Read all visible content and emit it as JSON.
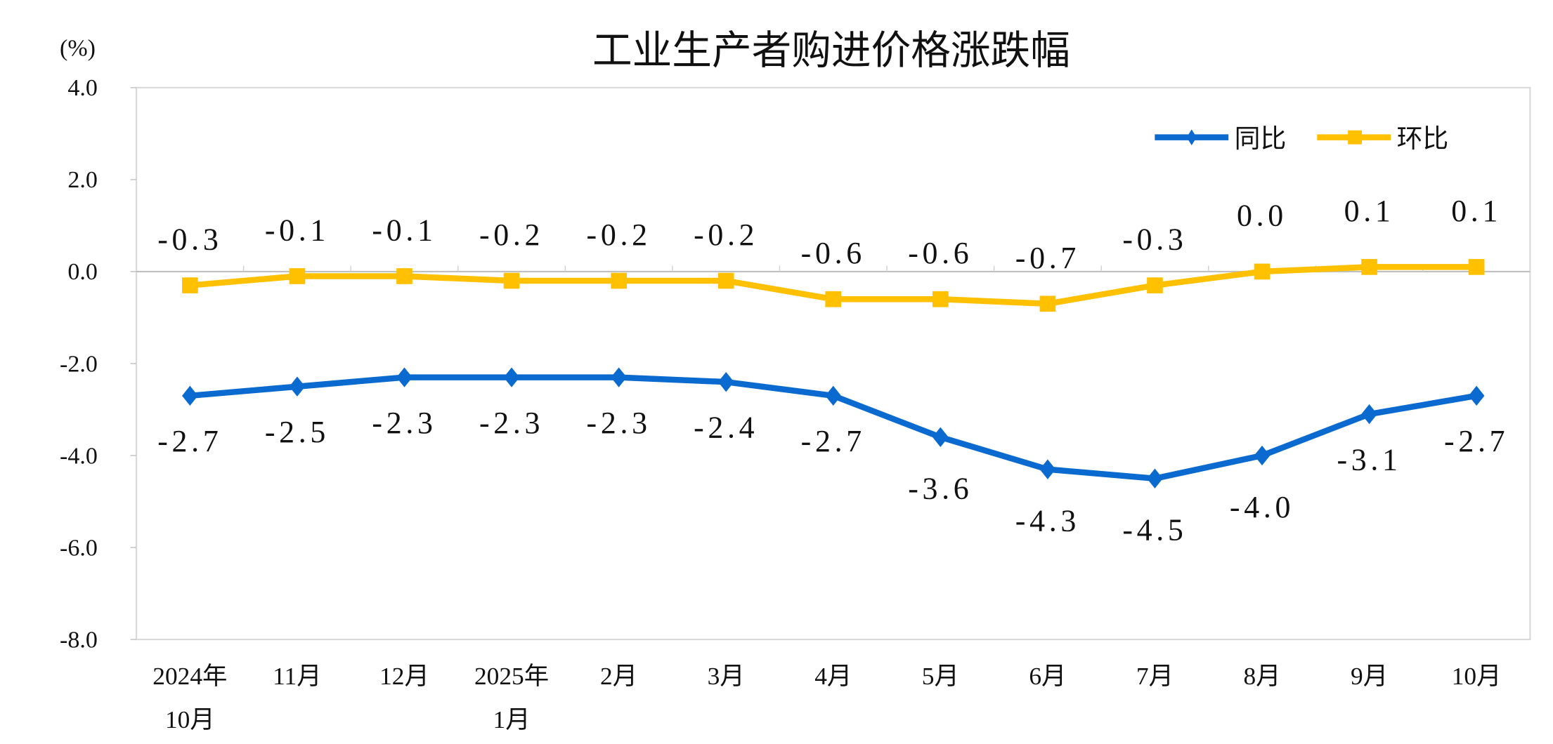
{
  "chart_data": {
    "type": "line",
    "title": "工业生产者购进价格涨跌幅",
    "ylabel": "(%)",
    "xlabel": "",
    "ylim": [
      -8.0,
      4.0
    ],
    "yticks": [
      "4.0",
      "2.0",
      "0.0",
      "-2.0",
      "-4.0",
      "-6.0",
      "-8.0"
    ],
    "ytick_values": [
      4,
      2,
      0,
      -2,
      -4,
      -6,
      -8
    ],
    "categories": [
      [
        "2024年",
        "10月"
      ],
      [
        "11月"
      ],
      [
        "12月"
      ],
      [
        "2025年",
        "1月"
      ],
      [
        "2月"
      ],
      [
        "3月"
      ],
      [
        "4月"
      ],
      [
        "5月"
      ],
      [
        "6月"
      ],
      [
        "7月"
      ],
      [
        "8月"
      ],
      [
        "9月"
      ],
      [
        "10月"
      ]
    ],
    "grid": false,
    "legend_position": "top-right",
    "series": [
      {
        "name": "同比",
        "color": "#0A6ACF",
        "marker": "diamond",
        "label_position": "below",
        "values": [
          -2.7,
          -2.5,
          -2.3,
          -2.3,
          -2.3,
          -2.4,
          -2.7,
          -3.6,
          -4.3,
          -4.5,
          -4.0,
          -3.1,
          -2.7
        ],
        "labels": [
          "-2.7",
          "-2.5",
          "-2.3",
          "-2.3",
          "-2.3",
          "-2.4",
          "-2.7",
          "-3.6",
          "-4.3",
          "-4.5",
          "-4.0",
          "-3.1",
          "-2.7"
        ]
      },
      {
        "name": "环比",
        "color": "#FFC000",
        "marker": "square",
        "label_position": "above",
        "values": [
          -0.3,
          -0.1,
          -0.1,
          -0.2,
          -0.2,
          -0.2,
          -0.6,
          -0.6,
          -0.7,
          -0.3,
          0.0,
          0.1,
          0.1
        ],
        "labels": [
          "-0.3",
          "-0.1",
          "-0.1",
          "-0.2",
          "-0.2",
          "-0.2",
          "-0.6",
          "-0.6",
          "-0.7",
          "-0.3",
          "0.0",
          "0.1",
          "0.1"
        ]
      }
    ]
  }
}
